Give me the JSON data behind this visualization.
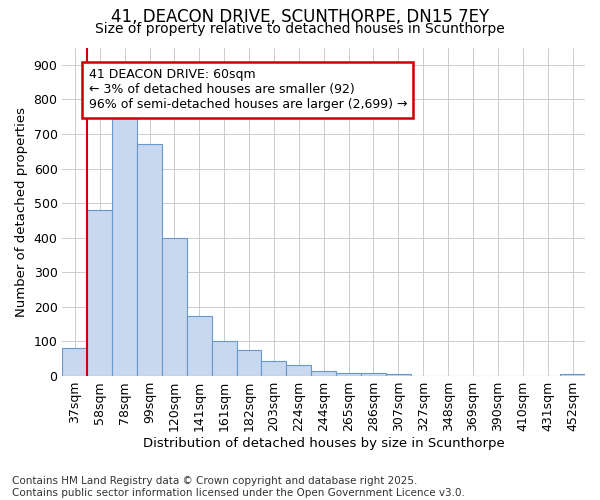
{
  "title_line1": "41, DEACON DRIVE, SCUNTHORPE, DN15 7EY",
  "title_line2": "Size of property relative to detached houses in Scunthorpe",
  "xlabel": "Distribution of detached houses by size in Scunthorpe",
  "ylabel": "Number of detached properties",
  "categories": [
    "37sqm",
    "58sqm",
    "78sqm",
    "99sqm",
    "120sqm",
    "141sqm",
    "161sqm",
    "182sqm",
    "203sqm",
    "224sqm",
    "244sqm",
    "265sqm",
    "286sqm",
    "307sqm",
    "327sqm",
    "348sqm",
    "369sqm",
    "390sqm",
    "410sqm",
    "431sqm",
    "452sqm"
  ],
  "values": [
    80,
    480,
    750,
    670,
    400,
    175,
    100,
    75,
    45,
    33,
    15,
    10,
    10,
    5,
    0,
    0,
    0,
    0,
    0,
    0,
    5
  ],
  "bar_color": "#c8d8ee",
  "bar_edge_color": "#6699cc",
  "vline_x_between": 0.5,
  "vline_color": "#cc0000",
  "annotation_text": "41 DEACON DRIVE: 60sqm\n← 3% of detached houses are smaller (92)\n96% of semi-detached houses are larger (2,699) →",
  "annotation_box_color": "#ffffff",
  "annotation_box_edge": "#cc0000",
  "ylim": [
    0,
    950
  ],
  "yticks": [
    0,
    100,
    200,
    300,
    400,
    500,
    600,
    700,
    800,
    900
  ],
  "grid_color": "#cccccc",
  "plot_bg_color": "#ffffff",
  "fig_bg_color": "#ffffff",
  "footer_line1": "Contains HM Land Registry data © Crown copyright and database right 2025.",
  "footer_line2": "Contains public sector information licensed under the Open Government Licence v3.0.",
  "title_fontsize": 12,
  "subtitle_fontsize": 10,
  "axis_label_fontsize": 9.5,
  "tick_fontsize": 9,
  "annotation_fontsize": 9,
  "footer_fontsize": 7.5
}
